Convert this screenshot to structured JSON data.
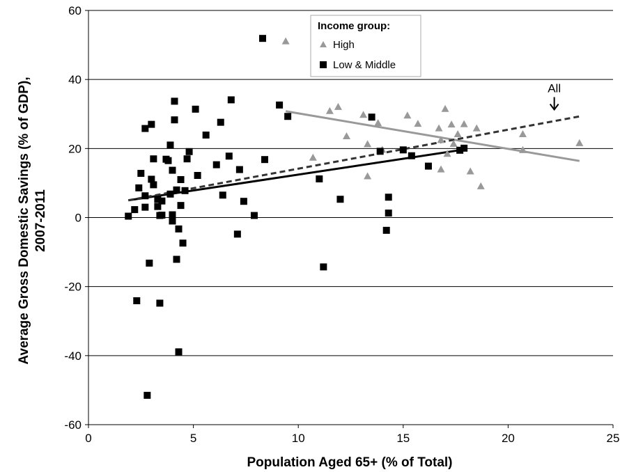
{
  "chart_data": {
    "type": "scatter",
    "xlabel": "Population Aged 65+ (% of Total)",
    "ylabel_lines": [
      "Average Gross Domestic Savings (% of GDP),",
      "2007-2011"
    ],
    "xlim": [
      0,
      25
    ],
    "ylim": [
      -60,
      60
    ],
    "xticks": [
      "0",
      "5",
      "10",
      "15",
      "20",
      "25"
    ],
    "yticks": [
      "60",
      "40",
      "20",
      "0",
      "-20",
      "-40",
      "-60"
    ],
    "grid": "horizontal",
    "legend": {
      "title": "Income group:",
      "placement": "top-center",
      "entries": [
        "High",
        "Low & Middle"
      ]
    },
    "series": [
      {
        "name": "High",
        "marker": "triangle",
        "color": "#999999",
        "points": [
          [
            9.4,
            51
          ],
          [
            10.7,
            17.3
          ],
          [
            11.5,
            30.8
          ],
          [
            11.9,
            32
          ],
          [
            12.3,
            23.5
          ],
          [
            13.1,
            29.7
          ],
          [
            13.3,
            21.2
          ],
          [
            13.3,
            11.9
          ],
          [
            13.8,
            27.3
          ],
          [
            14.0,
            19.6
          ],
          [
            15.2,
            29.5
          ],
          [
            15.7,
            27.1
          ],
          [
            16.7,
            25.8
          ],
          [
            16.8,
            13.9
          ],
          [
            16.8,
            22.4
          ],
          [
            17.0,
            31.4
          ],
          [
            17.1,
            18.4
          ],
          [
            17.3,
            26.9
          ],
          [
            17.4,
            21.3
          ],
          [
            17.6,
            24.1
          ],
          [
            17.9,
            27.0
          ],
          [
            18.2,
            13.3
          ],
          [
            18.5,
            25.8
          ],
          [
            18.7,
            9.0
          ],
          [
            20.7,
            24.1
          ],
          [
            20.7,
            19.5
          ],
          [
            23.4,
            21.5
          ]
        ]
      },
      {
        "name": "Low & Middle",
        "marker": "square",
        "color": "#000000",
        "points": [
          [
            1.9,
            0.4
          ],
          [
            2.2,
            2.3
          ],
          [
            2.3,
            -24.1
          ],
          [
            2.4,
            8.6
          ],
          [
            2.5,
            12.8
          ],
          [
            2.7,
            25.8
          ],
          [
            2.7,
            3.0
          ],
          [
            2.7,
            6.3
          ],
          [
            2.8,
            -51.5
          ],
          [
            2.9,
            -13.2
          ],
          [
            3.0,
            27.0
          ],
          [
            3.0,
            11.1
          ],
          [
            3.1,
            17.0
          ],
          [
            3.1,
            9.5
          ],
          [
            3.3,
            3.2
          ],
          [
            3.3,
            5.3
          ],
          [
            3.4,
            0.6
          ],
          [
            3.4,
            -24.8
          ],
          [
            3.5,
            4.8
          ],
          [
            3.5,
            0.7
          ],
          [
            3.7,
            16.9
          ],
          [
            3.8,
            16.5
          ],
          [
            3.9,
            6.8
          ],
          [
            3.9,
            21.0
          ],
          [
            4.0,
            13.7
          ],
          [
            4.0,
            0.8
          ],
          [
            4.0,
            -1.0
          ],
          [
            4.1,
            33.7
          ],
          [
            4.1,
            28.3
          ],
          [
            4.2,
            -12.1
          ],
          [
            4.2,
            8.0
          ],
          [
            4.3,
            -38.9
          ],
          [
            4.3,
            -3.3
          ],
          [
            4.4,
            11.0
          ],
          [
            4.4,
            3.5
          ],
          [
            4.5,
            -7.4
          ],
          [
            4.6,
            7.8
          ],
          [
            4.7,
            17.0
          ],
          [
            4.8,
            19.1
          ],
          [
            5.1,
            31.4
          ],
          [
            5.2,
            12.2
          ],
          [
            5.6,
            23.9
          ],
          [
            6.1,
            15.3
          ],
          [
            6.3,
            27.6
          ],
          [
            6.4,
            6.5
          ],
          [
            6.7,
            17.8
          ],
          [
            6.8,
            34.1
          ],
          [
            7.1,
            -4.8
          ],
          [
            7.2,
            13.9
          ],
          [
            7.4,
            4.7
          ],
          [
            7.9,
            0.6
          ],
          [
            8.3,
            51.9
          ],
          [
            8.4,
            16.8
          ],
          [
            9.1,
            32.6
          ],
          [
            9.5,
            29.3
          ],
          [
            11.0,
            11.2
          ],
          [
            11.2,
            -14.3
          ],
          [
            12.0,
            5.3
          ],
          [
            13.5,
            29.1
          ],
          [
            13.9,
            19.2
          ],
          [
            14.2,
            -3.7
          ],
          [
            14.3,
            1.3
          ],
          [
            14.3,
            5.9
          ],
          [
            15.0,
            19.6
          ],
          [
            15.4,
            17.9
          ],
          [
            16.2,
            14.9
          ],
          [
            17.7,
            19.5
          ],
          [
            17.9,
            20.1
          ]
        ]
      }
    ],
    "fit_lines": [
      {
        "series": "High",
        "style": "solid",
        "color": "#999999",
        "x": [
          9.4,
          23.4
        ],
        "y": [
          30.8,
          16.4
        ]
      },
      {
        "series": "Low & Middle",
        "style": "solid",
        "color": "#000000",
        "x": [
          1.9,
          17.9
        ],
        "y": [
          5.0,
          19.7
        ]
      },
      {
        "series": "All",
        "style": "dashed",
        "color": "#333333",
        "x": [
          1.9,
          23.4
        ],
        "y": [
          5.0,
          29.3
        ]
      }
    ],
    "annotations": [
      {
        "text": "All",
        "x": 22.2,
        "y": 36.3,
        "arrow": "down"
      }
    ]
  }
}
